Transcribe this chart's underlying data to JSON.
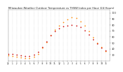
{
  "title": "Milwaukee Weather Outdoor Temperature vs THSW Index per Hour (24 Hours)",
  "title_fontsize": 2.8,
  "background_color": "#ffffff",
  "plot_bg_color": "#ffffff",
  "grid_color": "#bbbbbb",
  "xlim": [
    0,
    24
  ],
  "ylim": [
    20,
    105
  ],
  "xtick_positions": [
    0,
    1,
    2,
    3,
    4,
    5,
    6,
    7,
    8,
    9,
    10,
    11,
    12,
    13,
    14,
    15,
    16,
    17,
    18,
    19,
    20,
    21,
    22,
    23
  ],
  "ytick_positions": [
    30,
    40,
    50,
    60,
    70,
    80,
    90,
    100
  ],
  "ytick_labels": [
    "30",
    "40",
    "50",
    "60",
    "70",
    "80",
    "90",
    "100"
  ],
  "temp_color": "#cc0000",
  "thsw_color": "#ff8800",
  "hours": [
    0,
    1,
    2,
    3,
    4,
    5,
    6,
    7,
    8,
    9,
    10,
    11,
    12,
    13,
    14,
    15,
    16,
    17,
    18,
    19,
    20,
    21,
    22,
    23
  ],
  "temp": [
    32,
    31,
    30,
    29,
    28,
    28,
    30,
    35,
    43,
    52,
    62,
    69,
    74,
    77,
    79,
    80,
    79,
    76,
    71,
    64,
    56,
    49,
    42,
    37
  ],
  "thsw": [
    29,
    28,
    27,
    26,
    25,
    25,
    27,
    32,
    42,
    51,
    63,
    72,
    79,
    84,
    89,
    92,
    91,
    86,
    79,
    70,
    59,
    50,
    43,
    36
  ],
  "marker_size": 1.5,
  "tick_fontsize": 2.2,
  "ytick_fontsize": 2.5,
  "vgrid_style": "dotted",
  "vgrid_lw": 0.3,
  "hgrid_lw": 0.0
}
